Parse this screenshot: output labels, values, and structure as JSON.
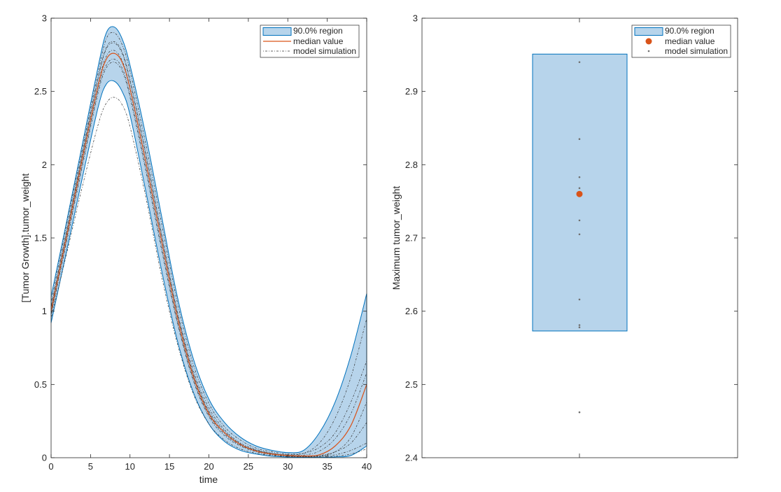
{
  "chart_data": [
    {
      "type": "area",
      "xlabel": "time",
      "ylabel": "[Tumor Growth].tumor_weight",
      "xlim": [
        0,
        40
      ],
      "ylim": [
        0,
        3
      ],
      "xticks": [
        "0",
        "5",
        "10",
        "15",
        "20",
        "25",
        "30",
        "35",
        "40"
      ],
      "yticks": [
        "0",
        "0.5",
        "1",
        "1.5",
        "2",
        "2.5",
        "3"
      ],
      "legend": {
        "position": "top-right",
        "entries": [
          "90.0% region",
          "median value",
          "model simulation"
        ]
      },
      "x": [
        0,
        2,
        4,
        6,
        7,
        8,
        9,
        10,
        12,
        14,
        16,
        18,
        20,
        22,
        24,
        26,
        28,
        30,
        32,
        34,
        36,
        38,
        40
      ],
      "series": [
        {
          "name": "90.0% region",
          "upper": [
            1.1,
            1.62,
            2.15,
            2.68,
            2.9,
            2.94,
            2.86,
            2.68,
            2.2,
            1.65,
            1.1,
            0.68,
            0.4,
            0.24,
            0.14,
            0.08,
            0.05,
            0.035,
            0.05,
            0.17,
            0.38,
            0.7,
            1.12
          ],
          "lower": [
            0.92,
            1.42,
            1.92,
            2.4,
            2.55,
            2.57,
            2.5,
            2.34,
            1.82,
            1.28,
            0.8,
            0.45,
            0.23,
            0.11,
            0.05,
            0.025,
            0.01,
            0.005,
            0.003,
            0.003,
            0.005,
            0.015,
            0.08
          ]
        },
        {
          "name": "median value",
          "values": [
            1.0,
            1.52,
            2.05,
            2.55,
            2.72,
            2.76,
            2.7,
            2.52,
            2.02,
            1.48,
            0.96,
            0.56,
            0.3,
            0.17,
            0.09,
            0.045,
            0.025,
            0.015,
            0.012,
            0.02,
            0.08,
            0.22,
            0.5
          ]
        },
        {
          "name": "model simulation",
          "runs": [
            [
              0.95,
              1.4,
              1.86,
              2.28,
              2.42,
              2.46,
              2.41,
              2.26,
              1.78,
              1.24,
              0.78,
              0.44,
              0.23,
              0.12,
              0.06,
              0.03,
              0.015,
              0.008,
              0.006,
              0.01,
              0.04,
              0.14,
              0.38
            ],
            [
              1.02,
              1.55,
              2.08,
              2.6,
              2.8,
              2.84,
              2.77,
              2.58,
              2.08,
              1.53,
              1.0,
              0.6,
              0.34,
              0.19,
              0.1,
              0.055,
              0.03,
              0.02,
              0.03,
              0.1,
              0.27,
              0.55,
              0.95
            ],
            [
              1.06,
              1.6,
              2.12,
              2.64,
              2.86,
              2.9,
              2.82,
              2.64,
              2.14,
              1.6,
              1.06,
              0.64,
              0.37,
              0.21,
              0.12,
              0.065,
              0.04,
              0.025,
              0.03,
              0.07,
              0.17,
              0.38,
              0.66
            ],
            [
              0.98,
              1.5,
              2.02,
              2.52,
              2.68,
              2.72,
              2.66,
              2.48,
              1.98,
              1.44,
              0.93,
              0.54,
              0.29,
              0.16,
              0.085,
              0.045,
              0.025,
              0.012,
              0.008,
              0.01,
              0.02,
              0.05,
              0.1
            ],
            [
              1.0,
              1.53,
              2.06,
              2.56,
              2.74,
              2.78,
              2.71,
              2.53,
              2.03,
              1.49,
              0.97,
              0.57,
              0.31,
              0.17,
              0.09,
              0.05,
              0.028,
              0.018,
              0.018,
              0.045,
              0.13,
              0.3,
              0.58
            ],
            [
              1.03,
              1.56,
              2.09,
              2.6,
              2.79,
              2.83,
              2.76,
              2.57,
              2.07,
              1.52,
              0.99,
              0.58,
              0.32,
              0.18,
              0.095,
              0.05,
              0.028,
              0.016,
              0.01,
              0.015,
              0.04,
              0.1,
              0.24
            ],
            [
              0.97,
              1.48,
              2.0,
              2.5,
              2.66,
              2.7,
              2.64,
              2.46,
              1.96,
              1.42,
              0.92,
              0.53,
              0.28,
              0.15,
              0.08,
              0.04,
              0.02,
              0.01,
              0.006,
              0.006,
              0.01,
              0.025,
              0.06
            ]
          ]
        }
      ]
    },
    {
      "type": "scatter",
      "ylabel": "Maximum tumor_weight",
      "ylim": [
        2.4,
        3
      ],
      "yticks": [
        "2.4",
        "2.5",
        "2.6",
        "2.7",
        "2.8",
        "2.9",
        "3"
      ],
      "legend": {
        "position": "top-right",
        "entries": [
          "90.0% region",
          "median value",
          "model simulation"
        ]
      },
      "region": {
        "lower": 2.573,
        "upper": 2.951
      },
      "median": 2.76,
      "simulations": [
        2.94,
        2.835,
        2.783,
        2.768,
        2.724,
        2.705,
        2.616,
        2.581,
        2.578,
        2.462
      ]
    }
  ]
}
